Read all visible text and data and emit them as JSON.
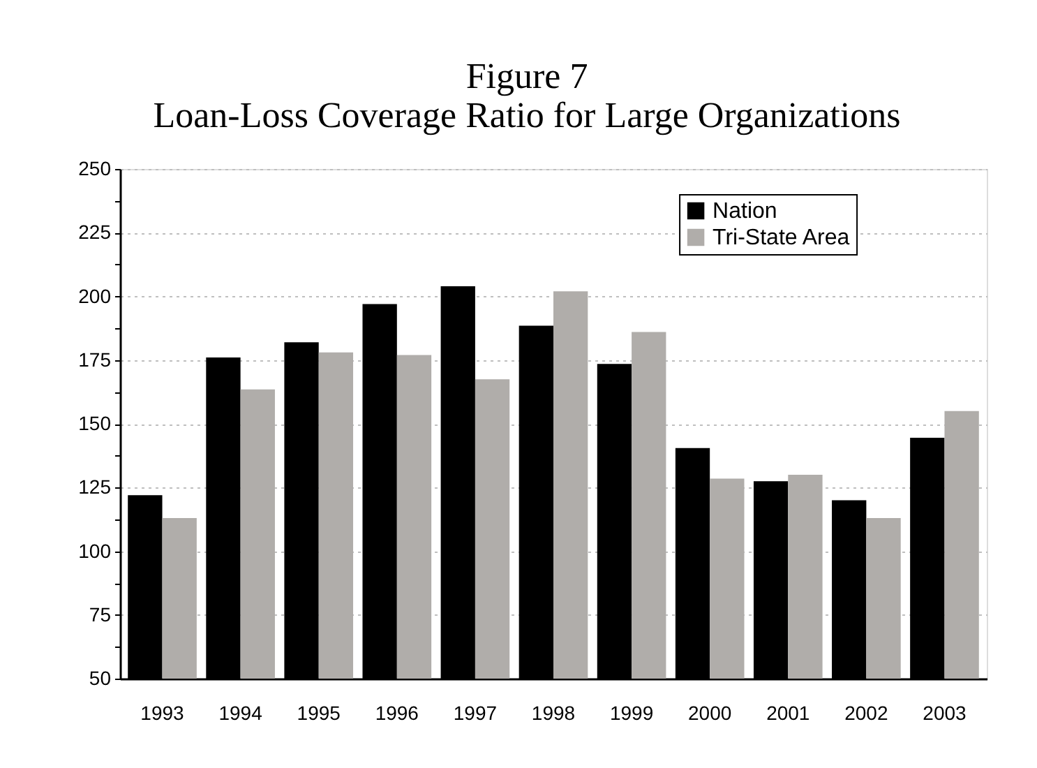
{
  "chart_data": {
    "type": "bar",
    "title": "Figure 7",
    "subtitle": "Loan-Loss Coverage Ratio for Large Organizations",
    "categories": [
      "1993",
      "1994",
      "1995",
      "1996",
      "1997",
      "1998",
      "1999",
      "2000",
      "2001",
      "2002",
      "2003"
    ],
    "series": [
      {
        "name": "Nation",
        "color": "#000000",
        "values": [
          122,
          176,
          182,
          197,
          204,
          188.5,
          173.5,
          140.5,
          127.5,
          120,
          144.5
        ]
      },
      {
        "name": "Tri-State Area",
        "color": "#b0adaa",
        "values": [
          113,
          163.5,
          178,
          177,
          167.5,
          202,
          186,
          128.5,
          130,
          113,
          155
        ]
      }
    ],
    "ylim": [
      50,
      250
    ],
    "yticks": [
      50,
      {
        "value": 62.5,
        "label": null
      },
      75,
      {
        "value": 87.5,
        "label": null
      },
      100,
      {
        "value": 112.5,
        "label": null
      },
      125,
      {
        "value": 137.5,
        "label": null
      },
      150,
      {
        "value": 162.5,
        "label": null
      },
      175,
      {
        "value": 187.5,
        "label": null
      },
      200,
      {
        "value": 212.5,
        "label": null
      },
      225,
      {
        "value": 237.5,
        "label": null
      },
      250
    ],
    "grid": "y",
    "legend": "top right"
  }
}
